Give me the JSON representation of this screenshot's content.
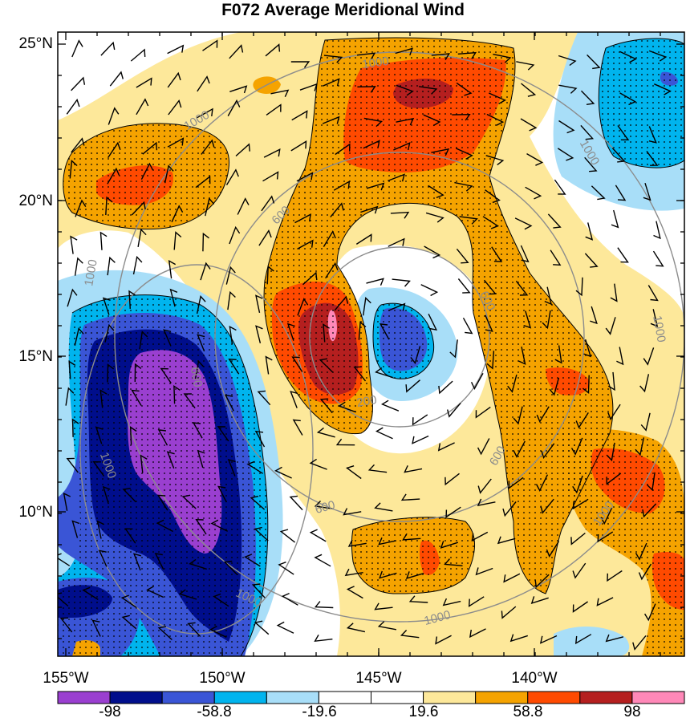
{
  "title": "F072 Average Meridional Wind",
  "axes": {
    "lat_labels": [
      "25°N",
      "20°N",
      "15°N",
      "10°N"
    ],
    "lon_labels": [
      "155°W",
      "150°W",
      "145°W",
      "140°W"
    ]
  },
  "colorbar": {
    "labels": [
      "-98",
      "-58.8",
      "-19.6",
      "19.6",
      "58.8",
      "98"
    ],
    "colors": [
      "#9a3fd0",
      "#000e8c",
      "#3a55d6",
      "#00b4ee",
      "#a8def8",
      "#ffffff",
      "#ffffff",
      "#fde89a",
      "#f5a300",
      "#ff4a00",
      "#b51f1f",
      "#ff88b8"
    ]
  },
  "contour_labels": [
    "1000",
    "1000",
    "1000",
    "1000",
    "1000",
    "1000",
    "1000",
    "1000",
    "1000",
    "600",
    "600",
    "600",
    "600",
    "600",
    "200"
  ],
  "contour_color": "#8c8c8c"
}
